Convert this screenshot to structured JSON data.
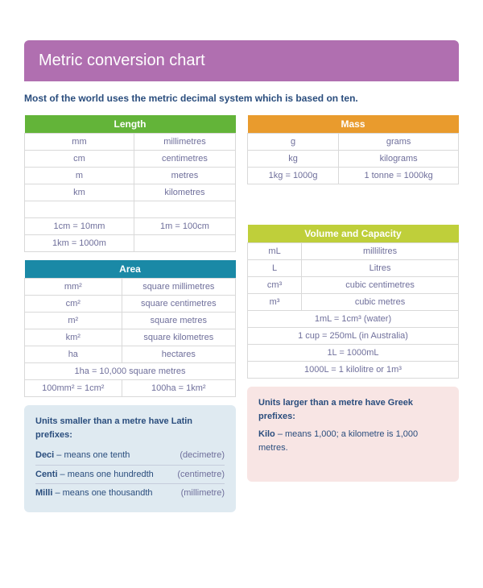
{
  "title": "Metric conversion chart",
  "intro": "Most of the world uses the metric decimal system which is based on ten.",
  "tables": {
    "length": {
      "header": "Length",
      "header_color": "#63b439",
      "rows": [
        [
          "mm",
          "millimetres"
        ],
        [
          "cm",
          "centimetres"
        ],
        [
          "m",
          "metres"
        ],
        [
          "km",
          "kilometres"
        ]
      ],
      "extra": [
        [
          "1cm = 10mm",
          "1m = 100cm"
        ],
        [
          "1km = 1000m",
          ""
        ]
      ]
    },
    "mass": {
      "header": "Mass",
      "header_color": "#e99b2d",
      "rows": [
        [
          "g",
          "grams"
        ],
        [
          "kg",
          "kilograms"
        ],
        [
          "1kg = 1000g",
          "1 tonne = 1000kg"
        ]
      ]
    },
    "area": {
      "header": "Area",
      "header_color": "#1a89a6",
      "rows": [
        [
          "mm²",
          "square millimetres"
        ],
        [
          "cm²",
          "square centimetres"
        ],
        [
          "m²",
          "square metres"
        ],
        [
          "km²",
          "square kilometres"
        ],
        [
          "ha",
          "hectares"
        ]
      ],
      "extra": [
        [
          "1ha = 10,000 square metres"
        ],
        [
          "100mm² = 1cm²",
          "100ha = 1km²"
        ]
      ]
    },
    "volume": {
      "header": "Volume and Capacity",
      "header_color": "#bfcf3a",
      "rows": [
        [
          "mL",
          "millilitres"
        ],
        [
          "L",
          "Litres"
        ],
        [
          "cm³",
          "cubic centimetres"
        ],
        [
          "m³",
          "cubic metres"
        ]
      ],
      "extra": [
        [
          "1mL = 1cm³ (water)"
        ],
        [
          "1 cup = 250mL  (in Australia)"
        ],
        [
          "1L = 1000mL"
        ],
        [
          "1000L = 1 kilolitre or 1m³"
        ]
      ]
    }
  },
  "latin_box": {
    "lead": "Units smaller than a metre have Latin prefixes:",
    "items": [
      {
        "term": "Deci",
        "desc": " – means one tenth",
        "paren": "(decimetre)"
      },
      {
        "term": "Centi",
        "desc": " – means one hundredth",
        "paren": "(centimetre)"
      },
      {
        "term": "Milli",
        "desc": " – means one thousandth",
        "paren": "(millimetre)"
      }
    ],
    "bg": "#dfeaf1"
  },
  "greek_box": {
    "lead": "Units larger than a metre have Greek prefixes:",
    "line_term": "Kilo",
    "line_rest": " – means 1,000; a kilometre is 1,000 metres.",
    "bg": "#f8e5e4"
  }
}
